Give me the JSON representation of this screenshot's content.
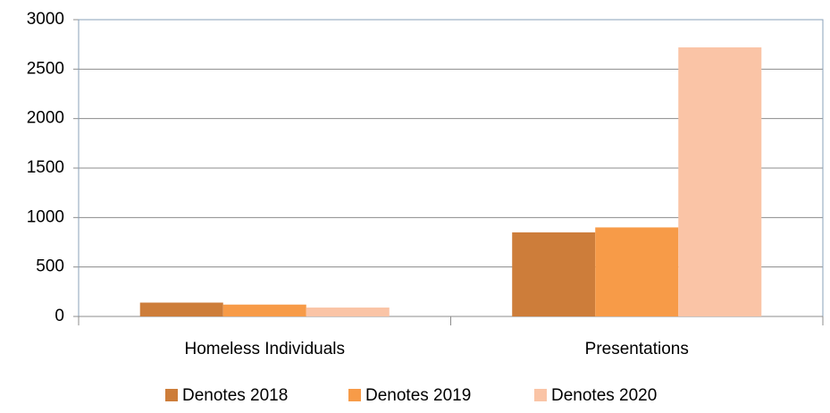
{
  "chart_data": {
    "type": "bar",
    "categories": [
      "Homeless Individuals",
      "Presentations"
    ],
    "series": [
      {
        "name": "Denotes 2018",
        "color": "#cd7d3a",
        "values": [
          140,
          850
        ]
      },
      {
        "name": "Denotes 2019",
        "color": "#f79b48",
        "values": [
          120,
          900
        ]
      },
      {
        "name": "Denotes 2020",
        "color": "#fac4a6",
        "values": [
          90,
          2720
        ]
      }
    ],
    "ylim": [
      0,
      3000
    ],
    "yticks": [
      0,
      500,
      1000,
      1500,
      2000,
      2500,
      3000
    ],
    "grid": true,
    "legend": "bottom"
  }
}
